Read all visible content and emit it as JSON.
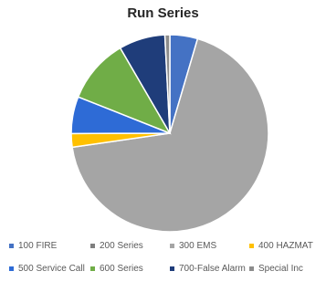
{
  "chart_data": {
    "type": "pie",
    "title": "Run Series",
    "categories": [
      "100 FIRE",
      "200 Series",
      "300 EMS",
      "400 HAZMAT",
      "500 Service Call",
      "600 Series",
      "700-False Alarm",
      "Special Inc"
    ],
    "values": [
      4.5,
      0.0,
      67.5,
      2.2,
      6.0,
      10.5,
      7.5,
      0.8
    ],
    "colors": [
      "#4472c4",
      "#7f7f7f",
      "#a5a5a5",
      "#ffc000",
      "#2e6bd6",
      "#70ad47",
      "#1f3d7a",
      "#8c8c8c"
    ],
    "legend_placement": "bottom"
  }
}
